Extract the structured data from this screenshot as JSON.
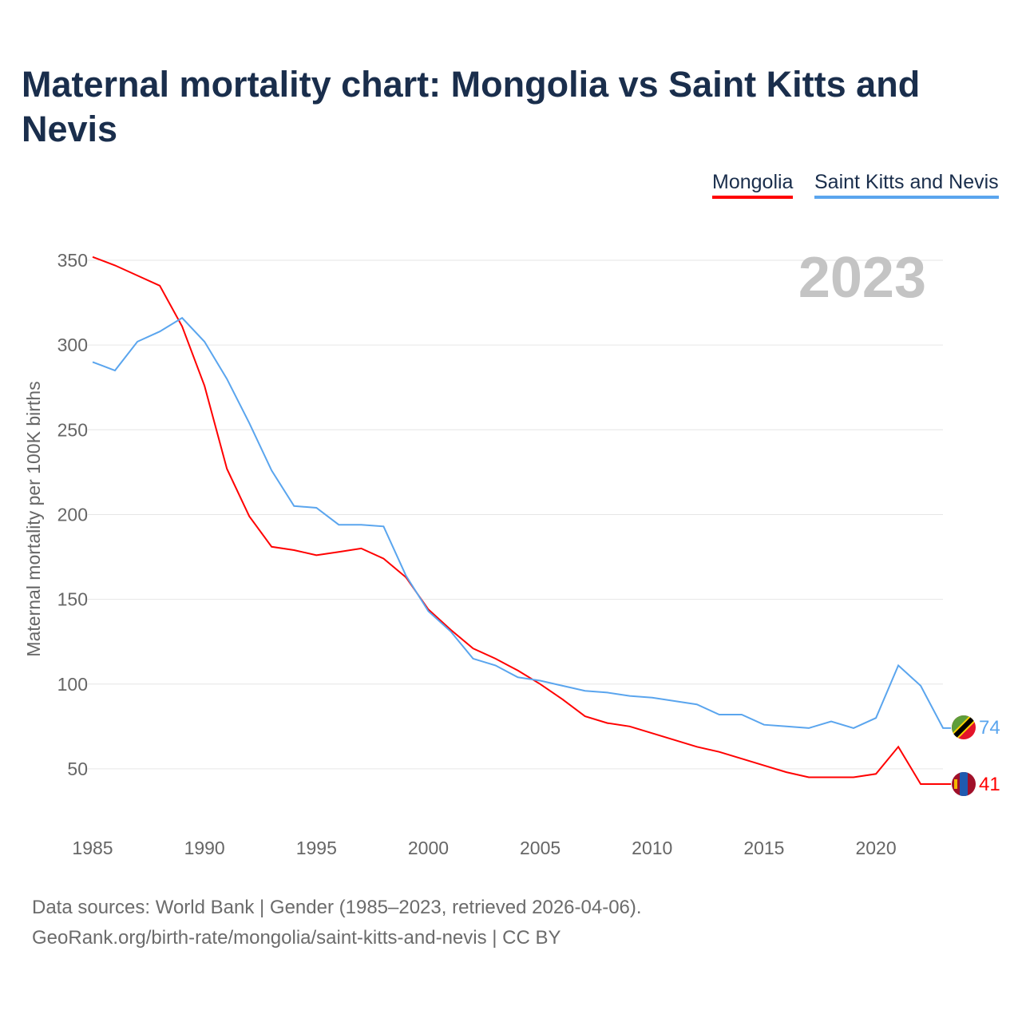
{
  "title": "Maternal mortality chart: Mongolia vs Saint Kitts and Nevis",
  "footer": {
    "line1": "Data sources: World Bank | Gender (1985–2023, retrieved 2026-04-06).",
    "line2": "GeoRank.org/birth-rate/mongolia/saint-kitts-and-nevis | CC BY"
  },
  "chart_data": {
    "type": "line",
    "title": "Maternal mortality chart: Mongolia vs Saint Kitts and Nevis",
    "ylabel": "Maternal mortality per 100K births",
    "xlabel": "",
    "year_label": "2023",
    "xlim": [
      1985,
      2023
    ],
    "ylim": [
      25,
      360
    ],
    "x_ticks": [
      1985,
      1990,
      1995,
      2000,
      2005,
      2010,
      2015,
      2020
    ],
    "y_ticks": [
      50,
      100,
      150,
      200,
      250,
      300,
      350
    ],
    "grid": true,
    "legend_position": "top-right",
    "x": [
      1985,
      1986,
      1987,
      1988,
      1989,
      1990,
      1991,
      1992,
      1993,
      1994,
      1995,
      1996,
      1997,
      1998,
      1999,
      2000,
      2001,
      2002,
      2003,
      2004,
      2005,
      2006,
      2007,
      2008,
      2009,
      2010,
      2011,
      2012,
      2013,
      2014,
      2015,
      2016,
      2017,
      2018,
      2019,
      2020,
      2021,
      2022,
      2023
    ],
    "series": [
      {
        "name": "Mongolia",
        "color": "#ff0000",
        "end_label": "41",
        "values": [
          352,
          347,
          341,
          335,
          311,
          276,
          227,
          199,
          181,
          179,
          176,
          178,
          180,
          174,
          163,
          144,
          132,
          121,
          115,
          108,
          100,
          91,
          81,
          77,
          75,
          71,
          67,
          63,
          60,
          56,
          52,
          48,
          45,
          45,
          45,
          47,
          63,
          41,
          41
        ]
      },
      {
        "name": "Saint Kitts and Nevis",
        "color": "#5aa5ee",
        "end_label": "74",
        "values": [
          290,
          285,
          302,
          308,
          316,
          302,
          280,
          254,
          226,
          205,
          204,
          194,
          194,
          193,
          164,
          143,
          131,
          115,
          111,
          104,
          102,
          99,
          96,
          95,
          93,
          92,
          90,
          88,
          82,
          82,
          76,
          75,
          74,
          78,
          74,
          80,
          111,
          99,
          74
        ]
      }
    ]
  }
}
